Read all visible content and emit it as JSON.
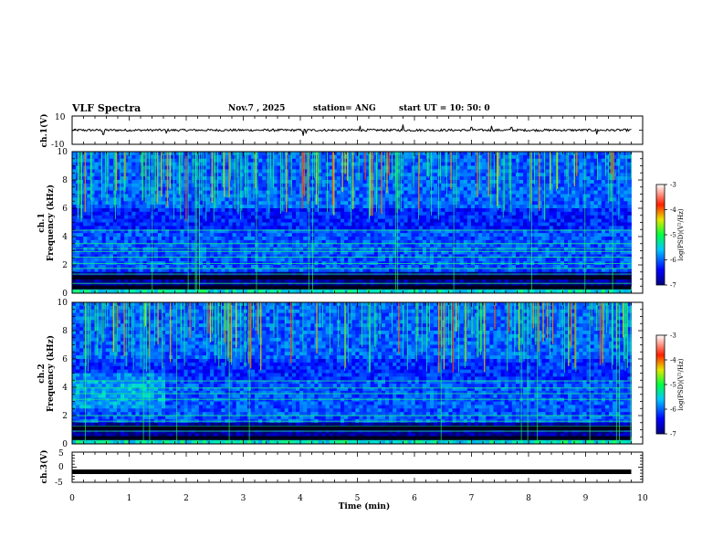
{
  "header": {
    "title": "VLF Spectra",
    "date": "Nov.7 , 2025",
    "station": "station= ANG",
    "start": "start UT = 10: 50: 0"
  },
  "colors": {
    "frame": "#000000",
    "waveform": "#000000",
    "background": "#ffffff"
  },
  "chart_data": [
    {
      "type": "line",
      "name": "ch1-waveform",
      "ylabel": "ch.1(V)",
      "ylim": [
        -10,
        10
      ],
      "yticks": [
        "10",
        "-10"
      ],
      "xlim": [
        0,
        10
      ],
      "baseline": 0,
      "spike_times_min": [
        0.55,
        1.65,
        4.05,
        4.1,
        5.05,
        5.8,
        7.0,
        7.35,
        7.7,
        9.2
      ],
      "spike_values": [
        -3,
        -2,
        -4,
        -2,
        3,
        4,
        2,
        3,
        2,
        -3
      ]
    },
    {
      "type": "heatmap",
      "name": "ch1-spectrogram",
      "ylabel": "ch.1\nFrequency (kHz)",
      "ylabel_line1": "ch.1",
      "ylabel_line2": "Frequency (kHz)",
      "ylim": [
        0,
        10
      ],
      "yticks": [
        "0",
        "2",
        "4",
        "6",
        "8",
        "10"
      ],
      "xlim": [
        0,
        10
      ],
      "colorbar": {
        "label": "log(PSD)(V²/Hz)",
        "min": -7,
        "max": -3,
        "ticks": [
          "-3",
          "-4",
          "-5",
          "-6",
          "-7"
        ]
      },
      "data_end_min": 9.8
    },
    {
      "type": "heatmap",
      "name": "ch2-spectrogram",
      "ylabel": "ch.2\nFrequency (kHz)",
      "ylabel_line1": "ch.2",
      "ylabel_line2": "Frequency (kHz)",
      "ylim": [
        0,
        10
      ],
      "yticks": [
        "0",
        "2",
        "4",
        "6",
        "8",
        "10"
      ],
      "xlim": [
        0,
        10
      ],
      "colorbar": {
        "label": "log(PSD)(V²/Hz)",
        "min": -7,
        "max": -3,
        "ticks": [
          "-3",
          "-4",
          "-5",
          "-6",
          "-7"
        ]
      },
      "data_end_min": 9.8
    },
    {
      "type": "line",
      "name": "ch3-waveform",
      "ylabel": "ch.3(V)",
      "ylim": [
        -5,
        5
      ],
      "yticks": [
        "5",
        "0",
        "-5"
      ],
      "xlim": [
        0,
        10
      ],
      "value": -1.5,
      "xlabel": "Time (min)",
      "xticks": [
        "0",
        "1",
        "2",
        "3",
        "4",
        "5",
        "6",
        "7",
        "8",
        "9",
        "10"
      ]
    }
  ]
}
